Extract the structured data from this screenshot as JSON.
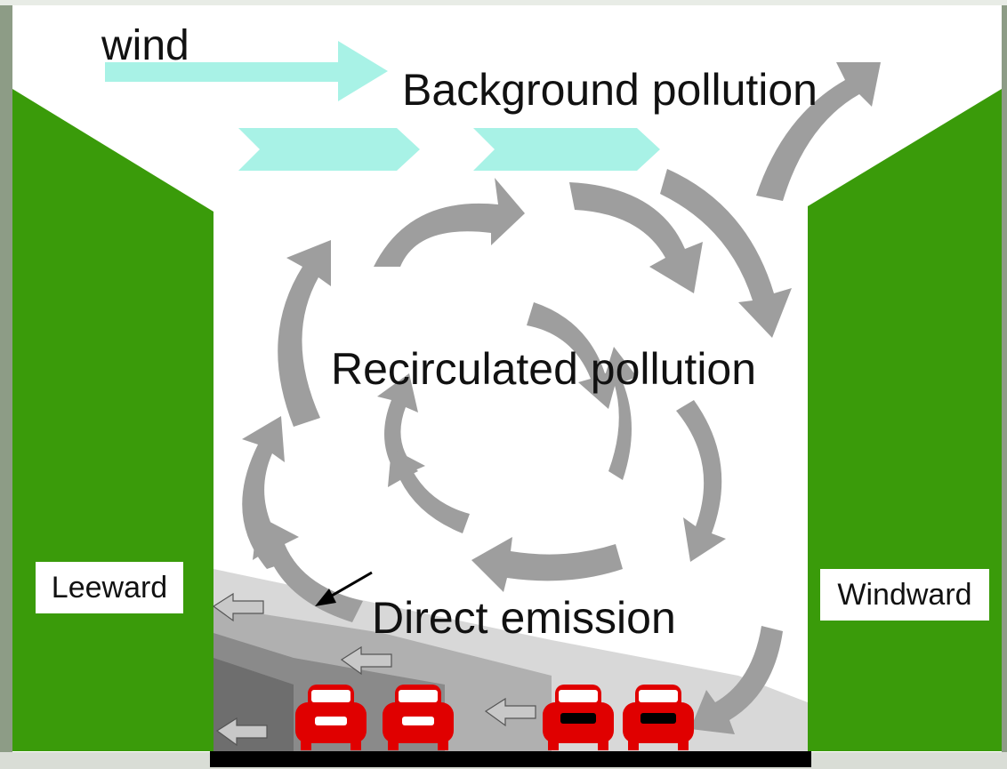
{
  "labels": {
    "wind": "wind",
    "background_pollution": "Background pollution",
    "recirculated_pollution": "Recirculated pollution",
    "direct_emission": "Direct emission",
    "leeward": "Leeward",
    "windward": "Windward"
  },
  "colors": {
    "building": "#3a9b0a",
    "wind_arrow": "#a8f2e6",
    "recirculation_arrow": "#9e9e9e",
    "car": "#e00000",
    "road": "#000000"
  }
}
